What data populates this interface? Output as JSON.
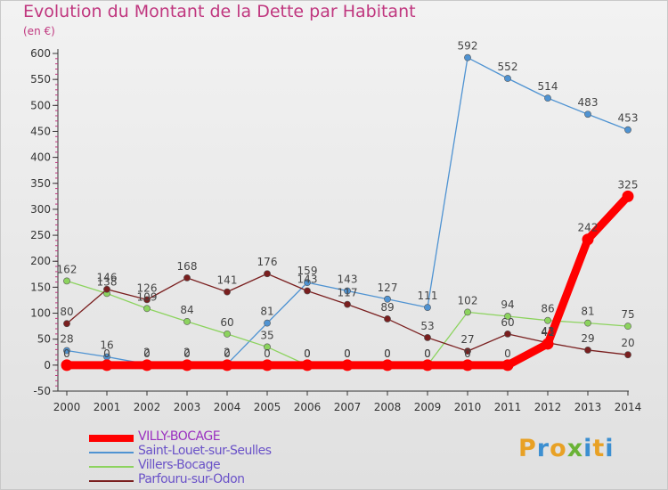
{
  "header": {
    "title": "Evolution du Montant de la Dette par Habitant",
    "subtitle": "(en €)"
  },
  "logo": {
    "text": "Proxiti",
    "colors": [
      "#e8a125",
      "#3c8fd1",
      "#e8a125",
      "#6ab336",
      "#3c8fd1",
      "#e8a125",
      "#3c8fd1"
    ]
  },
  "chart_data": {
    "type": "line",
    "x": [
      "2000",
      "2001",
      "2002",
      "2003",
      "2004",
      "2005",
      "2006",
      "2007",
      "2008",
      "2009",
      "2010",
      "2011",
      "2012",
      "2013",
      "2014"
    ],
    "ylim": [
      -50,
      600
    ],
    "yticks": [
      -50,
      0,
      50,
      100,
      150,
      200,
      250,
      300,
      350,
      400,
      450,
      500,
      550,
      600
    ],
    "grid": false,
    "legend_position": "bottom",
    "series": [
      {
        "name": "VILLY-BOCAGE",
        "color": "#ff0000",
        "bold": true,
        "values": [
          0,
          0,
          0,
          0,
          0,
          0,
          0,
          0,
          0,
          0,
          0,
          0,
          41,
          242,
          325
        ],
        "labels": [
          "0",
          "0",
          "0",
          "0",
          "0",
          "0",
          "0",
          "0",
          "0",
          "0",
          "0",
          "0",
          "41",
          "242",
          "325"
        ]
      },
      {
        "name": "Saint-Louet-sur-Seulles",
        "color": "#4f93d2",
        "values": [
          28,
          16,
          2,
          2,
          2,
          81,
          159,
          143,
          127,
          111,
          592,
          552,
          514,
          483,
          453
        ],
        "labels": [
          "28",
          "16",
          "2",
          "2",
          "2",
          "81",
          "159",
          "143",
          "127",
          "111",
          "592",
          "552",
          "514",
          "483",
          "453"
        ]
      },
      {
        "name": "Villers-Bocage",
        "color": "#8cd35e",
        "values": [
          162,
          138,
          109,
          84,
          60,
          35,
          0,
          0,
          0,
          0,
          102,
          94,
          86,
          81,
          75
        ],
        "labels": [
          "162",
          "138",
          "109",
          "84",
          "60",
          "35",
          "0",
          "0",
          "0",
          "0",
          "102",
          "94",
          "86",
          "81",
          "75"
        ]
      },
      {
        "name": "Parfouru-sur-Odon",
        "color": "#7a1f1f",
        "values": [
          80,
          146,
          126,
          168,
          141,
          176,
          143,
          117,
          89,
          53,
          27,
          60,
          43,
          29,
          20
        ],
        "labels": [
          "80",
          "146",
          "126",
          "168",
          "141",
          "176",
          "143",
          "117",
          "89",
          "53",
          "27",
          "60",
          "43",
          "29",
          "20"
        ]
      }
    ]
  }
}
